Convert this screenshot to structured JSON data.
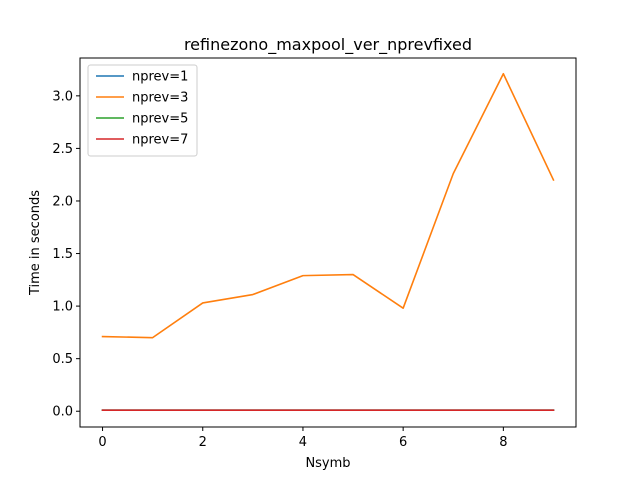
{
  "chart_data": {
    "type": "line",
    "title": "refinezono_maxpool_ver_nprevfixed",
    "xlabel": "Nsymb",
    "ylabel": "Time in seconds",
    "x": [
      0,
      1,
      2,
      3,
      4,
      5,
      6,
      7,
      8,
      9
    ],
    "xlim": [
      -0.45,
      9.45
    ],
    "ylim": [
      -0.15,
      3.36
    ],
    "xticks": [
      0,
      2,
      4,
      6,
      8
    ],
    "yticks": [
      0.0,
      0.5,
      1.0,
      1.5,
      2.0,
      2.5,
      3.0
    ],
    "xtick_labels": [
      "0",
      "2",
      "4",
      "6",
      "8"
    ],
    "ytick_labels": [
      "0.0",
      "0.5",
      "1.0",
      "1.5",
      "2.0",
      "2.5",
      "3.0"
    ],
    "grid": false,
    "legend_position": "top-left",
    "series": [
      {
        "name": "nprev=1",
        "color": "#1f77b4",
        "values": [
          0.01,
          0.01,
          0.01,
          0.01,
          0.01,
          0.01,
          0.01,
          0.01,
          0.01,
          0.01
        ]
      },
      {
        "name": "nprev=3",
        "color": "#ff7f0e",
        "values": [
          0.71,
          0.7,
          1.03,
          1.11,
          1.29,
          1.3,
          0.98,
          2.26,
          3.21,
          2.2
        ]
      },
      {
        "name": "nprev=5",
        "color": "#2ca02c",
        "values": [
          0.01,
          0.01,
          0.01,
          0.01,
          0.01,
          0.01,
          0.01,
          0.01,
          0.01,
          0.01
        ]
      },
      {
        "name": "nprev=7",
        "color": "#d62728",
        "values": [
          0.01,
          0.01,
          0.01,
          0.01,
          0.01,
          0.01,
          0.01,
          0.01,
          0.01,
          0.01
        ]
      }
    ]
  }
}
